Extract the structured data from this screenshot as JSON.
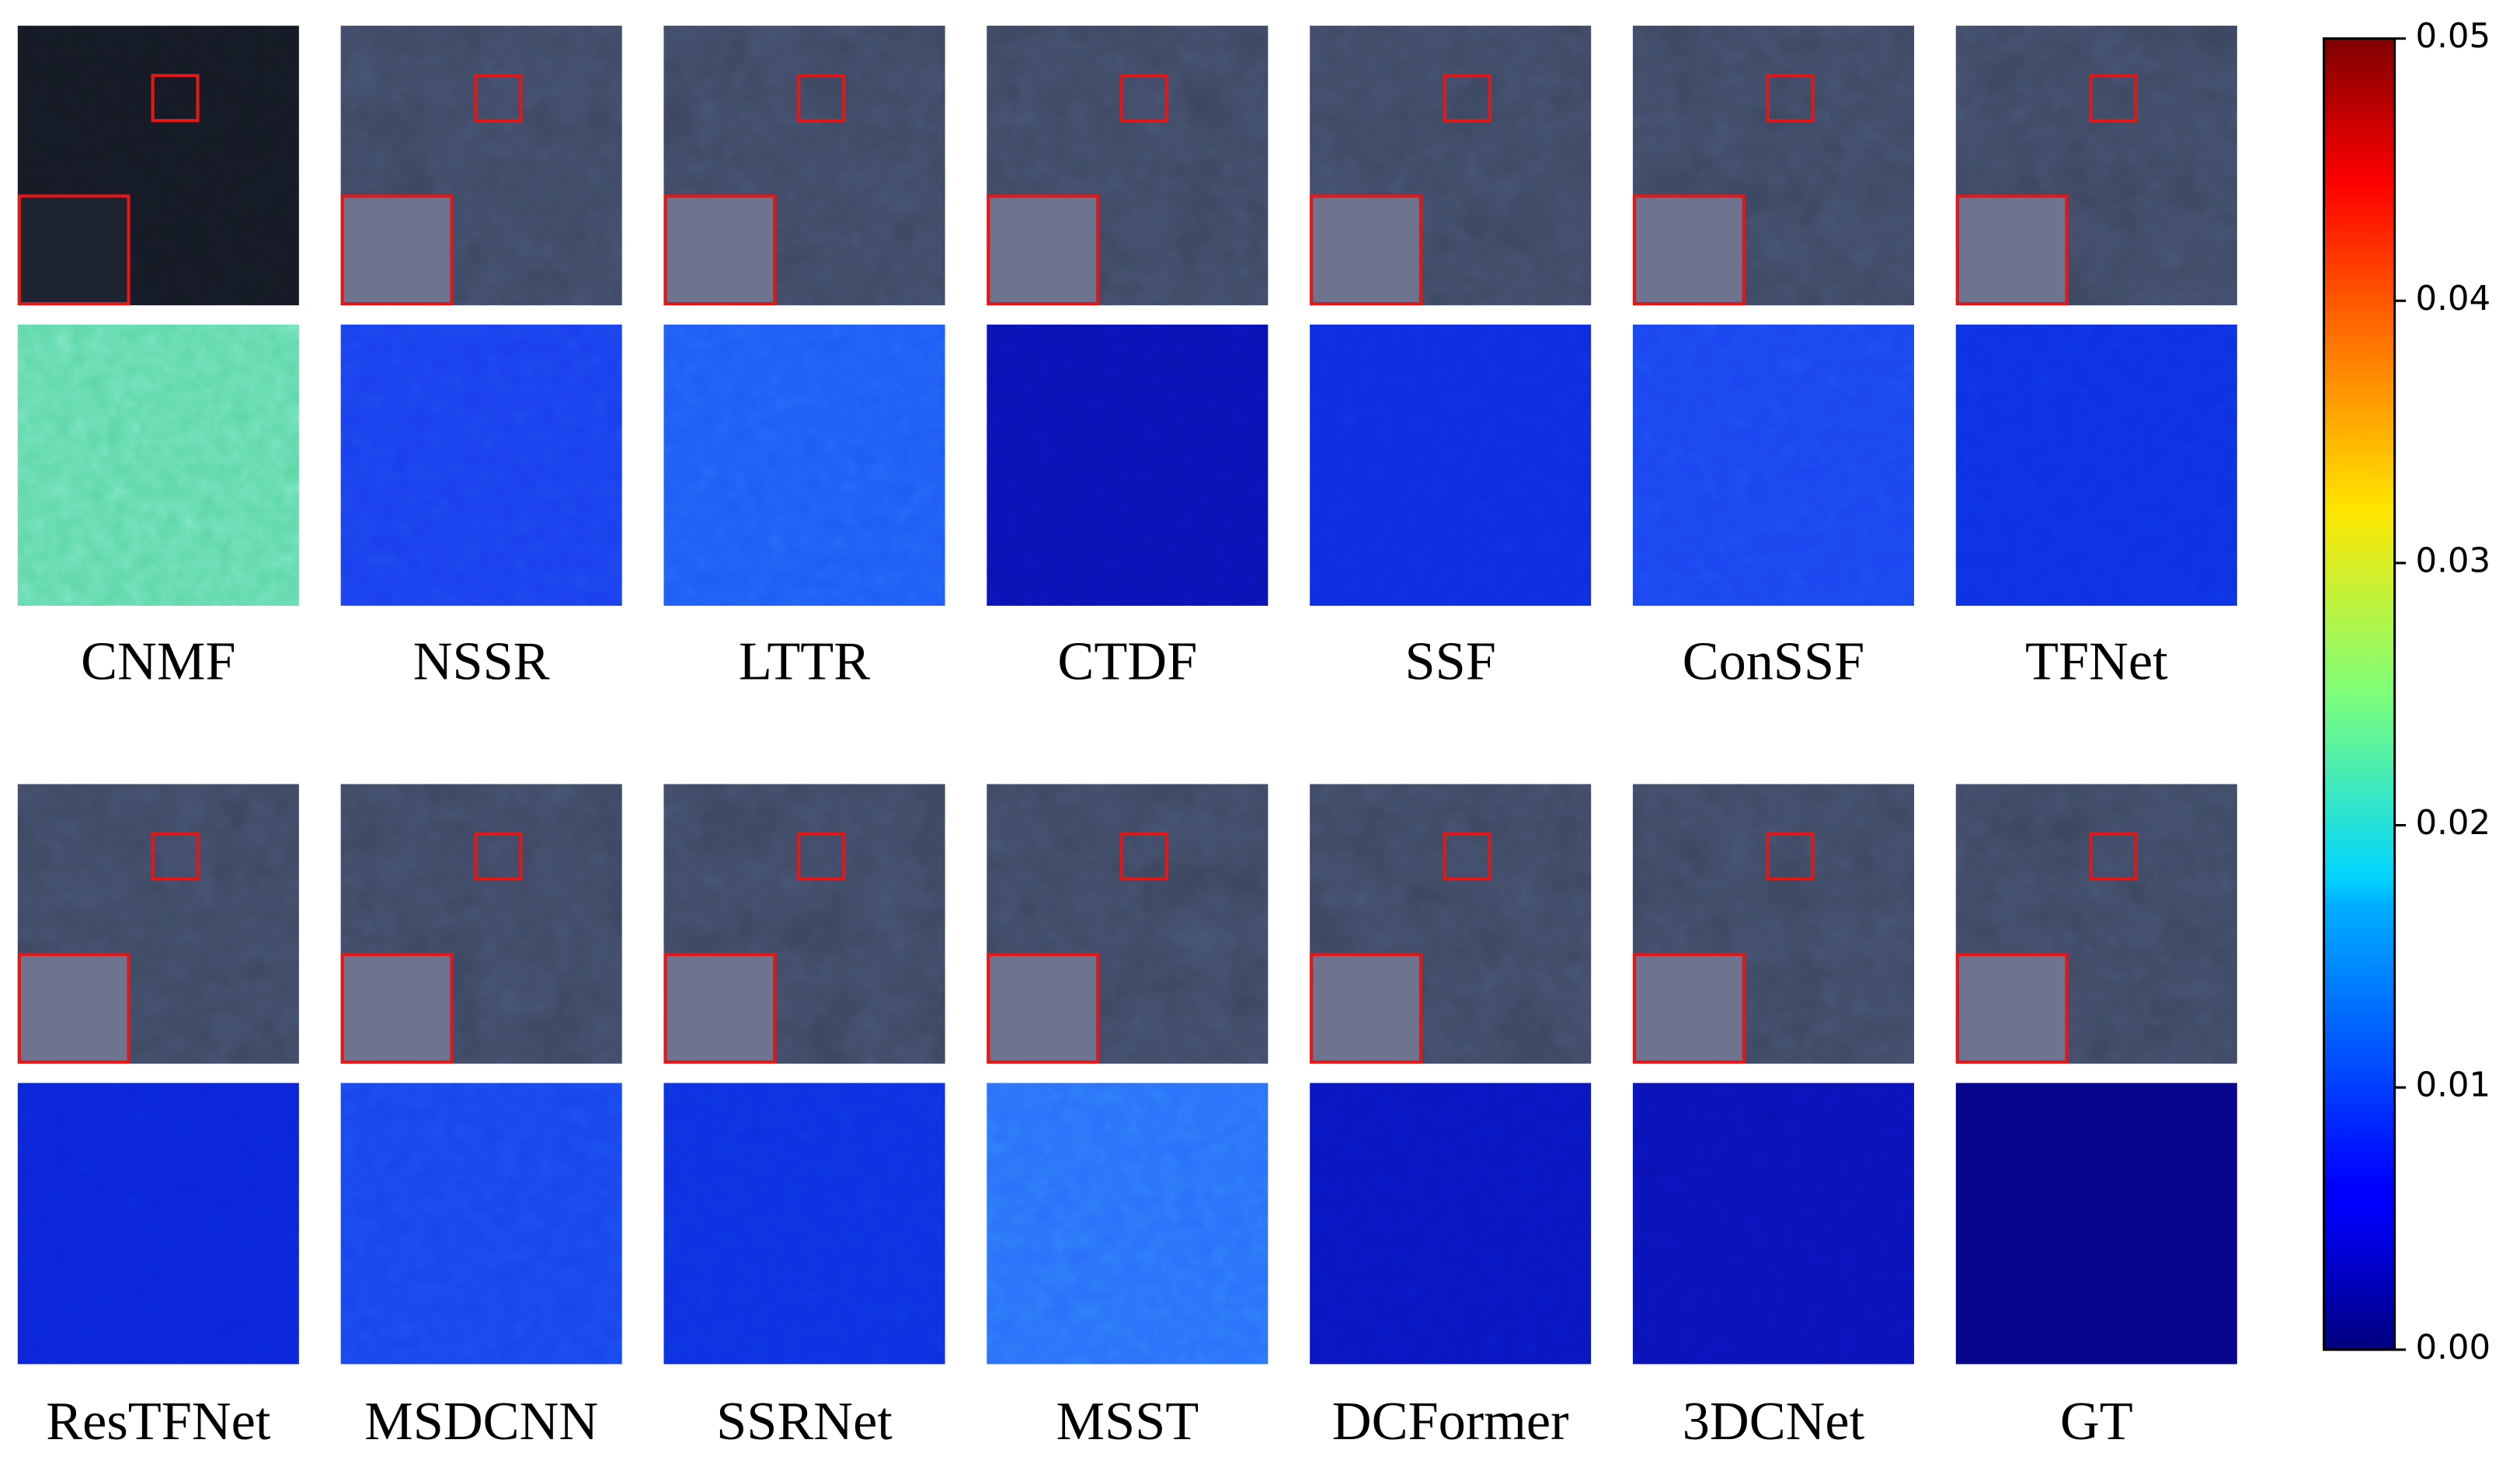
{
  "rows": [
    {
      "methods": [
        "CNMF",
        "NSSR",
        "LTTR",
        "CTDF",
        "SSF",
        "ConSSF",
        "TFNet"
      ]
    },
    {
      "methods": [
        "ResTFNet",
        "MSDCNN",
        "SSRNet",
        "MSST",
        "DCFormer",
        "3DCNet",
        "GT"
      ]
    }
  ],
  "colorbar": {
    "lim": [
      0,
      0.05
    ],
    "ticks": [
      {
        "value": 0,
        "label": "0.00"
      },
      {
        "value": 0.01,
        "label": "0.01"
      },
      {
        "value": 0.02,
        "label": "0.02"
      },
      {
        "value": 0.03,
        "label": "0.03"
      },
      {
        "value": 0.04,
        "label": "0.04"
      },
      {
        "value": 0.05,
        "label": "0.05"
      }
    ]
  }
}
